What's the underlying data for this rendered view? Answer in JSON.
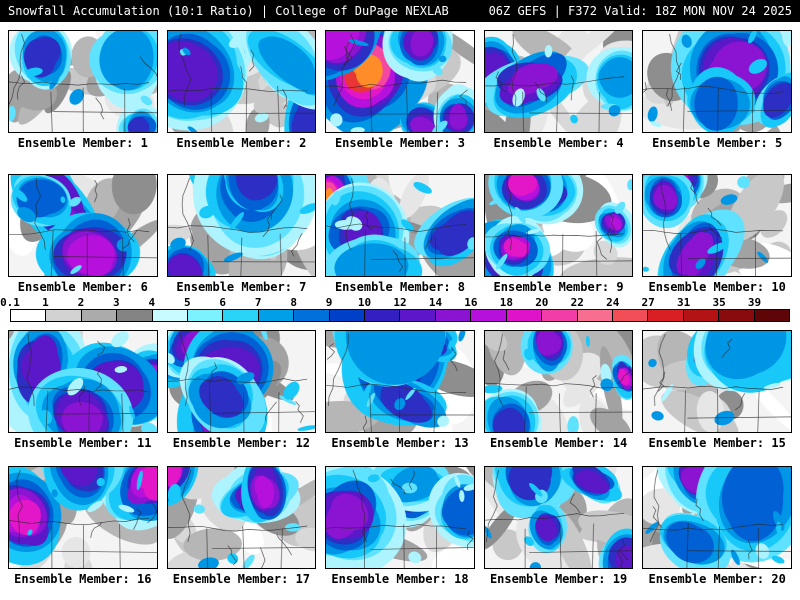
{
  "header": {
    "left": "Snowfall Accumulation (10:1 Ratio) | College of DuPage NEXLAB",
    "right": "06Z GEFS | F372 Valid: 18Z MON NOV 24 2025"
  },
  "panels": [
    {
      "label": "Ensemble Member: 1"
    },
    {
      "label": "Ensemble Member: 2"
    },
    {
      "label": "Ensemble Member: 3"
    },
    {
      "label": "Ensemble Member: 4"
    },
    {
      "label": "Ensemble Member: 5"
    },
    {
      "label": "Ensemble Member: 6"
    },
    {
      "label": "Ensemble Member: 7"
    },
    {
      "label": "Ensemble Member: 8"
    },
    {
      "label": "Ensemble Member: 9"
    },
    {
      "label": "Ensemble Member: 10"
    },
    {
      "label": "Ensemble Member: 11"
    },
    {
      "label": "Ensemble Member: 12"
    },
    {
      "label": "Ensemble Member: 13"
    },
    {
      "label": "Ensemble Member: 14"
    },
    {
      "label": "Ensemble Member: 15"
    },
    {
      "label": "Ensemble Member: 16"
    },
    {
      "label": "Ensemble Member: 17"
    },
    {
      "label": "Ensemble Member: 18"
    },
    {
      "label": "Ensemble Member: 19"
    },
    {
      "label": "Ensemble Member: 20"
    }
  ],
  "colorbar": {
    "ticks": [
      "0.1",
      "1",
      "2",
      "3",
      "4",
      "5",
      "6",
      "7",
      "8",
      "9",
      "10",
      "12",
      "14",
      "16",
      "18",
      "20",
      "22",
      "24",
      "27",
      "31",
      "35",
      "39"
    ],
    "colors": [
      "#ffffff",
      "#d2d2d2",
      "#ababab",
      "#848484",
      "#c8fbff",
      "#7df2ff",
      "#2ad4f6",
      "#00a0e8",
      "#0070da",
      "#0040c8",
      "#3420c0",
      "#5e17c8",
      "#8a14d2",
      "#b611dc",
      "#de13ca",
      "#f23ca6",
      "#f86e90",
      "#f14e58",
      "#da1f24",
      "#b41316",
      "#8a0b0e",
      "#600507"
    ],
    "map_ramp": [
      "#aef4ff",
      "#5fe2ff",
      "#18c8f8",
      "#0096e6",
      "#0060d4",
      "#2c2ec4",
      "#5a18c8",
      "#8a14d2",
      "#b611dc",
      "#e316c8",
      "#f447a0",
      "#f4737e",
      "#e83636",
      "#ff8c28",
      "#ffd44d"
    ]
  },
  "colors": {
    "header_bg": "#000000",
    "header_text": "#ffffff",
    "page_bg": "#ffffff",
    "label_text": "#000000",
    "map_border": "#000000"
  }
}
